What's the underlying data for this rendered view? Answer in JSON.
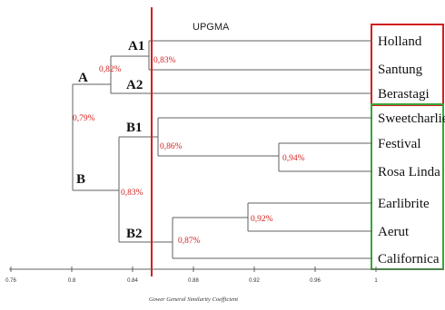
{
  "title": "UPGMA",
  "x_axis_label": "Gower General Similarity Coefficient",
  "x_ticks": [
    "0.76",
    "0.8",
    "0.84",
    "0.88",
    "0.92",
    "0.96",
    "1"
  ],
  "cutoff_line_color": "#d21f1f",
  "percent_color": "#d21f1f",
  "groups": {
    "A": "A",
    "A1": "A1",
    "A2": "A2",
    "B": "B",
    "B1": "B1",
    "B2": "B2"
  },
  "node_labels": {
    "root": "0,79%",
    "A": "0,82%",
    "A1": "0,83%",
    "B": "0,83%",
    "B1": "0,86%",
    "B1_sub": "0,94%",
    "B2": "0,87%",
    "B2_sub": "0,92%"
  },
  "cluster_boxes": [
    {
      "name": "A",
      "color": "#d21f1f"
    },
    {
      "name": "B",
      "color": "#3aa43a"
    }
  ],
  "leaves": [
    "Holland",
    "Santung",
    "Berastagi",
    "Sweetcharlie",
    "Festival",
    "Rosa Linda",
    "Earlibrite",
    "Aerut",
    "Californica"
  ]
}
